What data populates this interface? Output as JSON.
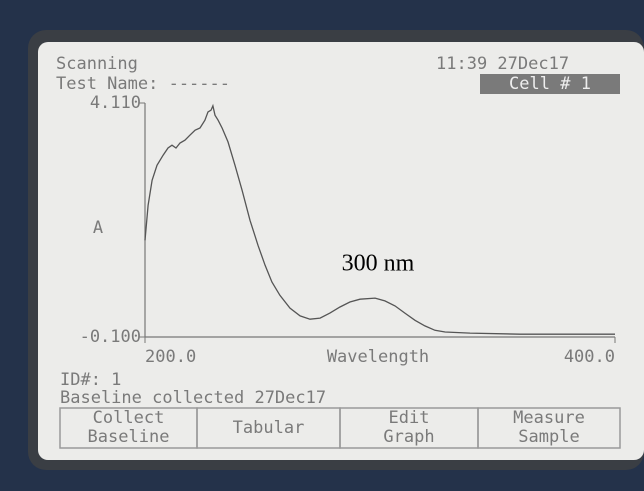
{
  "screen": {
    "status": "Scanning",
    "test_name": "Test Name: ------",
    "clock": "11:39 27Dec17",
    "cell": "Cell # 1",
    "id": "ID#: 1",
    "baseline_note": "Baseline collected 27Dec17",
    "buttons": [
      [
        "Collect",
        "Baseline"
      ],
      [
        "Tabular"
      ],
      [
        "Edit",
        "Graph"
      ],
      [
        "Measure",
        "Sample"
      ]
    ]
  },
  "chart_data": {
    "type": "line",
    "xlabel": "Wavelength",
    "ylabel": "A",
    "annotation": "300 nm",
    "color": "#555555",
    "xlim": [
      200,
      400
    ],
    "ylim": [
      -0.1,
      4.11
    ],
    "xticks": [
      {
        "value": 200,
        "label": "200.0"
      },
      {
        "value": 400,
        "label": "400.0"
      }
    ],
    "yticks": [
      {
        "value": 4.11,
        "label": "4.110"
      },
      {
        "value": -0.1,
        "label": "-0.100"
      }
    ],
    "x": [
      200,
      201.3,
      203,
      205.1,
      207.7,
      209.8,
      211.5,
      213.2,
      214.9,
      217,
      219.1,
      221.3,
      223.4,
      225.5,
      226.8,
      228.1,
      228.9,
      229.8,
      231.1,
      232.8,
      235.3,
      238.3,
      241.3,
      244.7,
      248.1,
      251.1,
      254,
      257.4,
      261.7,
      266,
      270.2,
      274.5,
      278.7,
      283,
      287.2,
      291.5,
      297.9,
      302.1,
      306.4,
      310.6,
      314.9,
      319.1,
      323.4,
      327.7,
      338.3,
      359.6,
      380.9,
      400
    ],
    "values": [
      1.64,
      2.27,
      2.72,
      2.99,
      3.17,
      3.3,
      3.35,
      3.3,
      3.39,
      3.44,
      3.53,
      3.62,
      3.66,
      3.8,
      3.95,
      3.98,
      4.06,
      3.89,
      3.8,
      3.66,
      3.41,
      2.99,
      2.54,
      2.0,
      1.55,
      1.19,
      0.89,
      0.65,
      0.42,
      0.28,
      0.22,
      0.24,
      0.33,
      0.44,
      0.53,
      0.58,
      0.6,
      0.55,
      0.46,
      0.33,
      0.2,
      0.1,
      0.02,
      -0.01,
      -0.03,
      -0.05,
      -0.05,
      -0.05
    ]
  }
}
